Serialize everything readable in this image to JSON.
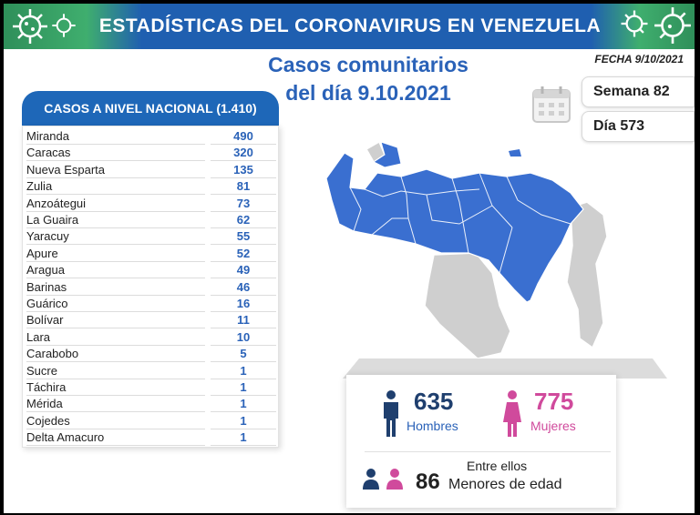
{
  "banner": {
    "title": "ESTADÍSTICAS DEL CORONAVIRUS EN VENEZUELA"
  },
  "subtitle": {
    "line1": "Casos comunitarios",
    "line2": "del día 9.10.2021"
  },
  "fecha": "FECHA 9/10/2021",
  "semana": "Semana 82",
  "dia": "Día 573",
  "table": {
    "header": "CASOS A NIVEL NACIONAL (1.410)",
    "rows": [
      {
        "name": "Miranda",
        "value": "490"
      },
      {
        "name": "Caracas",
        "value": "320"
      },
      {
        "name": "Nueva Esparta",
        "value": "135"
      },
      {
        "name": "Zulia",
        "value": "81"
      },
      {
        "name": "Anzoátegui",
        "value": "73"
      },
      {
        "name": "La Guaira",
        "value": "62"
      },
      {
        "name": "Yaracuy",
        "value": "55"
      },
      {
        "name": "Apure",
        "value": "52"
      },
      {
        "name": "Aragua",
        "value": "49"
      },
      {
        "name": "Barinas",
        "value": "46"
      },
      {
        "name": "Guárico",
        "value": "16"
      },
      {
        "name": "Bolívar",
        "value": "11"
      },
      {
        "name": "Lara",
        "value": "10"
      },
      {
        "name": "Carabobo",
        "value": "5"
      },
      {
        "name": "Sucre",
        "value": "1"
      },
      {
        "name": "Táchira",
        "value": "1"
      },
      {
        "name": "Mérida",
        "value": "1"
      },
      {
        "name": "Cojedes",
        "value": "1"
      },
      {
        "name": "Delta Amacuro",
        "value": "1"
      }
    ]
  },
  "stats": {
    "hombres_count": "635",
    "hombres_label": "Hombres",
    "mujeres_count": "775",
    "mujeres_label": "Mujeres",
    "entre_ellos": "Entre ellos",
    "menores_count": "86",
    "menores_label": "Menores de edad"
  },
  "colors": {
    "blue": "#2a62b8",
    "map_blue": "#3a6fd0",
    "map_gray": "#cfcfcf",
    "male": "#1f3f6e",
    "female": "#d04a9c"
  }
}
